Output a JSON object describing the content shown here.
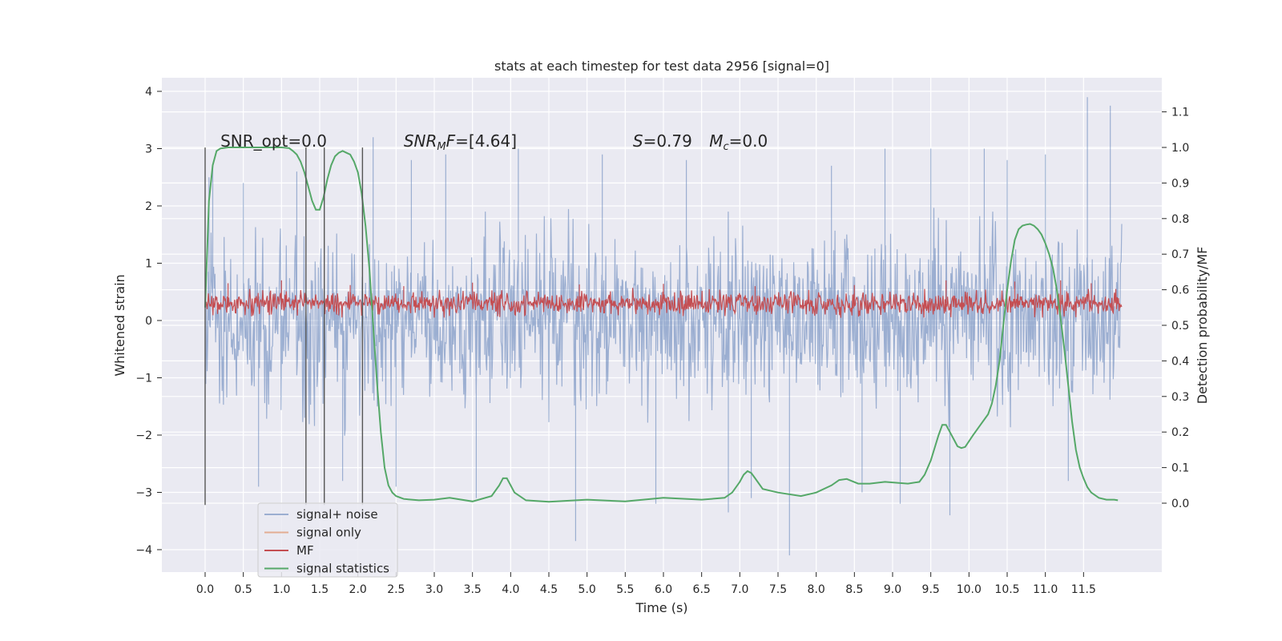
{
  "chart_data": {
    "type": "line",
    "title": "stats at each timestep for test data 2956 [signal=0]",
    "xlabel": "Time (s)",
    "ylabel_left": "Whitened strain",
    "ylabel_right": "Detection probability/MF",
    "xlim": [
      -0.6,
      12.1
    ],
    "ylim_left": [
      -4.45,
      4.25
    ],
    "ylim_right": [
      -0.2,
      1.2
    ],
    "x_ticks": [
      0.0,
      0.5,
      1.0,
      1.5,
      2.0,
      2.5,
      3.0,
      3.5,
      4.0,
      4.5,
      5.0,
      5.5,
      6.0,
      6.5,
      7.0,
      7.5,
      8.0,
      8.5,
      9.0,
      9.5,
      10.0,
      10.5,
      11.0,
      11.5
    ],
    "x_tick_labels": [
      "0.0",
      "0.5",
      "1.0",
      "1.5",
      "2.0",
      "2.5",
      "3.0",
      "3.5",
      "4.0",
      "4.5",
      "5.0",
      "5.5",
      "6.0",
      "6.5",
      "7.0",
      "7.5",
      "8.0",
      "8.5",
      "9.0",
      "9.5",
      "10.0",
      "10.5",
      "11.0",
      "11.5"
    ],
    "y_left_ticks": [
      -4,
      -3,
      -2,
      -1,
      0,
      1,
      2,
      3,
      4
    ],
    "y_left_tick_labels": [
      "−4",
      "−3",
      "−2",
      "−1",
      "0",
      "1",
      "2",
      "3",
      "4"
    ],
    "y_right_ticks": [
      0.0,
      0.1,
      0.2,
      0.3,
      0.4,
      0.5,
      0.6,
      0.7,
      0.8,
      0.9,
      1.0,
      1.1
    ],
    "y_right_tick_labels": [
      "0.0",
      "0.1",
      "0.2",
      "0.3",
      "0.4",
      "0.5",
      "0.6",
      "0.7",
      "0.8",
      "0.9",
      "1.0",
      "1.1"
    ],
    "grid": true,
    "legend_position": "lower-left",
    "annotations": [
      {
        "text": "SNR_opt=0.0",
        "x": 0.2,
        "y": 3.15
      },
      {
        "html": "<tspan font-style='italic'>SNR</tspan><tspan font-style='italic' font-size='13' dy='4'>M</tspan><tspan font-style='italic' dy='-4'>F</tspan>=[4.64]",
        "x": 2.6,
        "y": 3.15
      },
      {
        "html": "<tspan font-style='italic'>S</tspan>=0.79",
        "x": 5.6,
        "y": 3.15
      },
      {
        "html": "<tspan font-style='italic'>M</tspan><tspan font-style='italic' font-size='13' dy='4'>c</tspan><tspan dy='-4'>=0.0</tspan>",
        "x": 6.6,
        "y": 3.15
      }
    ],
    "vlines": [
      0.0,
      1.32,
      1.56,
      2.06
    ],
    "vline_range": [
      -3.22,
      3.02
    ],
    "series": [
      {
        "name": "signal+ noise",
        "color": "#4c72b0",
        "opacity": 0.5,
        "axis": "left",
        "kind": "noise_band",
        "x_range": [
          0.0,
          12.0
        ],
        "typical_range": [
          -1.9,
          1.9
        ],
        "spikes": [
          [
            0.05,
            2.5
          ],
          [
            0.1,
            2.7
          ],
          [
            0.5,
            2.4
          ],
          [
            0.7,
            -2.9
          ],
          [
            1.2,
            2.6
          ],
          [
            1.8,
            -2.8
          ],
          [
            2.2,
            3.2
          ],
          [
            2.5,
            -2.9
          ],
          [
            2.7,
            2.8
          ],
          [
            3.15,
            2.9
          ],
          [
            3.55,
            -3.1
          ],
          [
            4.1,
            3.0
          ],
          [
            4.85,
            -3.85
          ],
          [
            5.2,
            2.9
          ],
          [
            5.9,
            -3.2
          ],
          [
            6.3,
            2.8
          ],
          [
            6.85,
            -3.35
          ],
          [
            7.15,
            -3.1
          ],
          [
            7.65,
            -4.1
          ],
          [
            8.2,
            2.7
          ],
          [
            8.6,
            -3.0
          ],
          [
            8.9,
            3.0
          ],
          [
            9.1,
            -3.2
          ],
          [
            9.5,
            3.0
          ],
          [
            9.75,
            -3.4
          ],
          [
            10.2,
            3.0
          ],
          [
            10.5,
            2.8
          ],
          [
            11.0,
            2.9
          ],
          [
            11.3,
            -2.8
          ],
          [
            11.55,
            3.9
          ],
          [
            11.85,
            3.75
          ]
        ]
      },
      {
        "name": "signal only",
        "color": "#dd8452",
        "opacity": 0.6,
        "axis": "left",
        "kind": "flat",
        "values": [
          0
        ]
      },
      {
        "name": "MF",
        "color": "#c44e52",
        "opacity": 1.0,
        "axis": "left",
        "kind": "noise_band",
        "x_range": [
          0.0,
          12.0
        ],
        "typical_range": [
          0.05,
          0.55
        ],
        "spikes": [
          [
            0.3,
            0.65
          ],
          [
            1.0,
            0.7
          ],
          [
            1.9,
            0.62
          ],
          [
            2.6,
            0.6
          ],
          [
            3.5,
            0.66
          ],
          [
            4.9,
            0.63
          ],
          [
            6.0,
            0.64
          ],
          [
            7.2,
            0.6
          ],
          [
            8.5,
            0.62
          ],
          [
            9.7,
            0.7
          ],
          [
            10.6,
            0.68
          ],
          [
            11.2,
            0.7
          ],
          [
            11.6,
            0.65
          ]
        ]
      },
      {
        "name": "signal statistics",
        "color": "#55a868",
        "opacity": 1.0,
        "axis": "right",
        "kind": "line",
        "x": [
          0.0,
          0.05,
          0.1,
          0.15,
          0.2,
          0.3,
          0.5,
          0.8,
          1.0,
          1.1,
          1.15,
          1.2,
          1.25,
          1.3,
          1.35,
          1.4,
          1.45,
          1.5,
          1.55,
          1.6,
          1.65,
          1.7,
          1.75,
          1.8,
          1.85,
          1.9,
          1.95,
          2.0,
          2.05,
          2.1,
          2.15,
          2.2,
          2.25,
          2.3,
          2.35,
          2.4,
          2.45,
          2.5,
          2.6,
          2.8,
          3.0,
          3.2,
          3.5,
          3.75,
          3.85,
          3.9,
          3.95,
          4.05,
          4.2,
          4.5,
          5.0,
          5.5,
          6.0,
          6.5,
          6.8,
          6.9,
          7.0,
          7.05,
          7.1,
          7.15,
          7.2,
          7.3,
          7.5,
          7.8,
          8.0,
          8.2,
          8.3,
          8.4,
          8.55,
          8.7,
          8.9,
          9.2,
          9.35,
          9.42,
          9.5,
          9.6,
          9.65,
          9.7,
          9.75,
          9.8,
          9.85,
          9.9,
          9.95,
          10.05,
          10.15,
          10.25,
          10.3,
          10.35,
          10.4,
          10.45,
          10.5,
          10.55,
          10.6,
          10.65,
          10.7,
          10.75,
          10.8,
          10.85,
          10.9,
          10.95,
          11.0,
          11.05,
          11.1,
          11.15,
          11.2,
          11.25,
          11.3,
          11.35,
          11.4,
          11.45,
          11.5,
          11.55,
          11.6,
          11.7,
          11.8,
          11.9,
          11.95
        ],
        "y": [
          0.55,
          0.85,
          0.95,
          0.99,
          0.997,
          1.0,
          1.0,
          1.0,
          1.0,
          0.998,
          0.99,
          0.98,
          0.96,
          0.93,
          0.89,
          0.85,
          0.825,
          0.825,
          0.86,
          0.91,
          0.95,
          0.975,
          0.985,
          0.99,
          0.985,
          0.98,
          0.96,
          0.93,
          0.87,
          0.78,
          0.66,
          0.5,
          0.34,
          0.2,
          0.1,
          0.05,
          0.03,
          0.02,
          0.012,
          0.008,
          0.01,
          0.015,
          0.005,
          0.02,
          0.05,
          0.07,
          0.07,
          0.03,
          0.008,
          0.004,
          0.01,
          0.005,
          0.015,
          0.01,
          0.015,
          0.03,
          0.06,
          0.08,
          0.09,
          0.085,
          0.07,
          0.04,
          0.03,
          0.02,
          0.03,
          0.05,
          0.065,
          0.068,
          0.055,
          0.055,
          0.06,
          0.055,
          0.06,
          0.08,
          0.12,
          0.19,
          0.22,
          0.22,
          0.2,
          0.18,
          0.16,
          0.155,
          0.158,
          0.19,
          0.22,
          0.25,
          0.28,
          0.33,
          0.4,
          0.5,
          0.6,
          0.68,
          0.74,
          0.77,
          0.78,
          0.783,
          0.785,
          0.78,
          0.77,
          0.755,
          0.73,
          0.7,
          0.66,
          0.6,
          0.52,
          0.43,
          0.33,
          0.23,
          0.15,
          0.1,
          0.07,
          0.045,
          0.03,
          0.015,
          0.01,
          0.01,
          0.008
        ]
      }
    ]
  }
}
